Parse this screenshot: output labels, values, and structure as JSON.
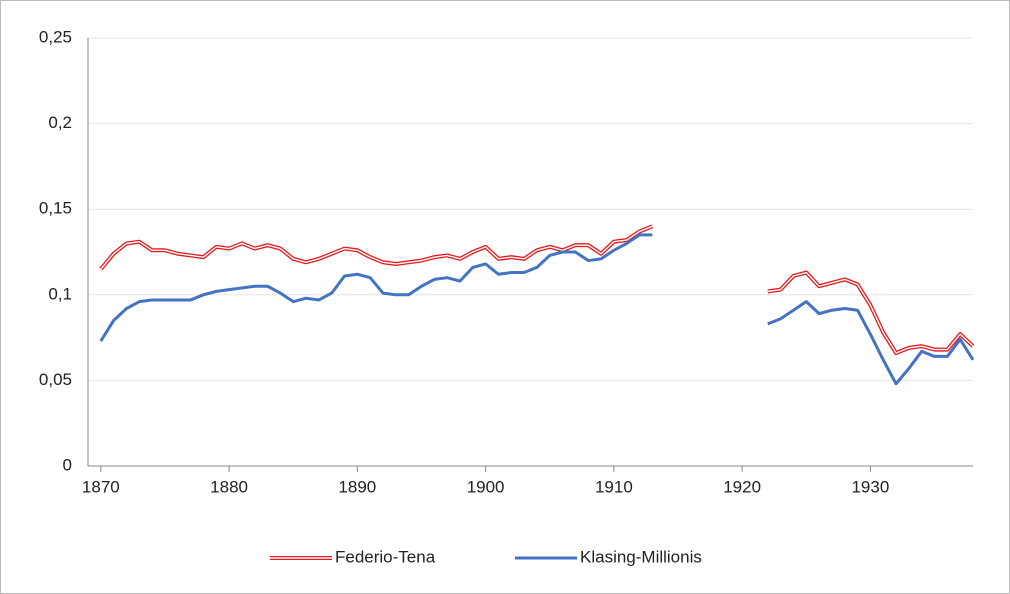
{
  "chart_data": {
    "type": "line",
    "x": [
      1870,
      1871,
      1872,
      1873,
      1874,
      1875,
      1876,
      1877,
      1878,
      1879,
      1880,
      1881,
      1882,
      1883,
      1884,
      1885,
      1886,
      1887,
      1888,
      1889,
      1890,
      1891,
      1892,
      1893,
      1894,
      1895,
      1896,
      1897,
      1898,
      1899,
      1900,
      1901,
      1902,
      1903,
      1904,
      1905,
      1906,
      1907,
      1908,
      1909,
      1910,
      1911,
      1912,
      1913,
      1914,
      1915,
      1916,
      1917,
      1918,
      1919,
      1920,
      1921,
      1922,
      1923,
      1924,
      1925,
      1926,
      1927,
      1928,
      1929,
      1930,
      1931,
      1932,
      1933,
      1934,
      1935,
      1936,
      1937,
      1938
    ],
    "series": [
      {
        "name": "Federio-Tena",
        "color": "#e41a1c",
        "style": "double",
        "values": [
          0.115,
          0.124,
          0.13,
          0.131,
          0.126,
          0.126,
          0.124,
          0.123,
          0.122,
          0.128,
          0.127,
          0.13,
          0.127,
          0.129,
          0.127,
          0.121,
          0.119,
          0.121,
          0.124,
          0.127,
          0.126,
          0.122,
          0.119,
          0.118,
          0.119,
          0.12,
          0.122,
          0.123,
          0.121,
          0.125,
          0.128,
          0.121,
          0.122,
          0.121,
          0.126,
          0.128,
          0.126,
          0.129,
          0.129,
          0.124,
          0.131,
          0.132,
          0.137,
          0.14,
          null,
          null,
          null,
          null,
          null,
          null,
          null,
          null,
          0.102,
          0.103,
          0.111,
          0.113,
          0.105,
          0.107,
          0.109,
          0.106,
          0.094,
          0.078,
          0.066,
          0.069,
          0.07,
          0.068,
          0.068,
          0.077,
          0.07
        ]
      },
      {
        "name": "Klasing-Millionis",
        "color": "#4472c4",
        "style": "solid",
        "values": [
          0.073,
          0.085,
          0.092,
          0.096,
          0.097,
          0.097,
          0.097,
          0.097,
          0.1,
          0.102,
          0.103,
          0.104,
          0.105,
          0.105,
          0.101,
          0.096,
          0.098,
          0.097,
          0.101,
          0.111,
          0.112,
          0.11,
          0.101,
          0.1,
          0.1,
          0.105,
          0.109,
          0.11,
          0.108,
          0.116,
          0.118,
          0.112,
          0.113,
          0.113,
          0.116,
          0.123,
          0.125,
          0.125,
          0.12,
          0.121,
          0.126,
          0.13,
          0.135,
          0.135,
          null,
          null,
          null,
          null,
          null,
          null,
          null,
          null,
          0.083,
          0.086,
          0.091,
          0.096,
          0.089,
          0.091,
          0.092,
          0.091,
          0.077,
          0.062,
          0.048,
          0.057,
          0.067,
          0.064,
          0.064,
          0.074,
          0.062
        ]
      }
    ],
    "xlim": [
      1869,
      1938
    ],
    "xticks": [
      1870,
      1880,
      1890,
      1900,
      1910,
      1920,
      1930
    ],
    "ylim": [
      0,
      0.25
    ],
    "yticks": [
      0,
      {
        "value": 0.05,
        "label": "0,05"
      },
      {
        "value": 0.1,
        "label": "0,1"
      },
      {
        "value": 0.15,
        "label": "0,15"
      },
      {
        "value": 0.2,
        "label": "0,2"
      },
      {
        "value": 0.25,
        "label": "0,25"
      }
    ],
    "grid": true,
    "legend": "bottom"
  }
}
